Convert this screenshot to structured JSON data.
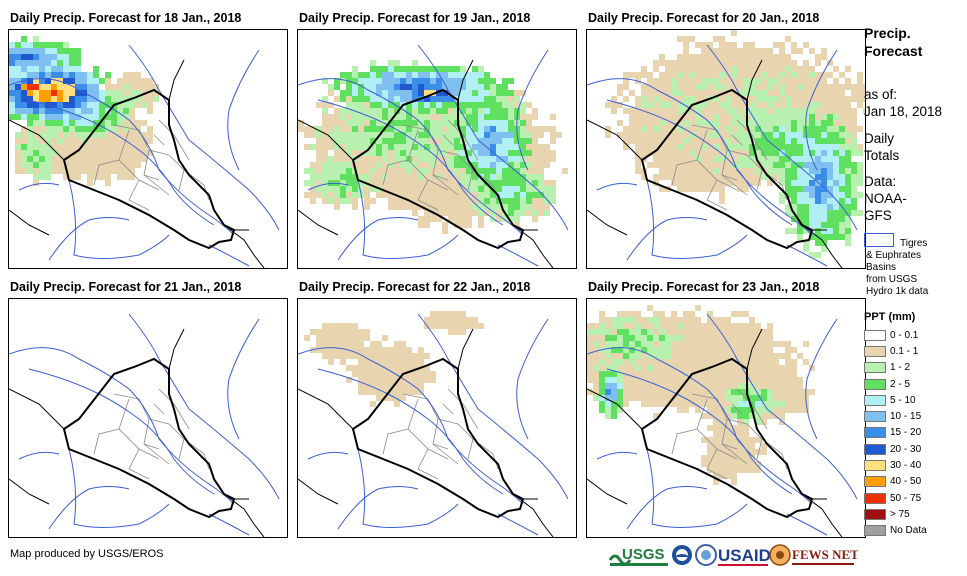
{
  "panels": [
    {
      "title": "Daily Precip. Forecast for 18 Jan., 2018",
      "day": 18
    },
    {
      "title": "Daily Precip. Forecast for 19 Jan., 2018",
      "day": 19
    },
    {
      "title": "Daily Precip. Forecast for 20 Jan., 2018",
      "day": 20
    },
    {
      "title": "Daily Precip. Forecast for 21 Jan., 2018",
      "day": 21
    },
    {
      "title": "Daily Precip. Forecast for 22 Jan., 2018",
      "day": 22
    },
    {
      "title": "Daily Precip. Forecast for 23 Jan., 2018",
      "day": 23
    }
  ],
  "side": {
    "title_line1": "Precip.",
    "title_line2": "Forecast",
    "asof_line1": "as of:",
    "asof_line2": "Jan 18, 2018",
    "daily_line1": "Daily",
    "daily_line2": "Totals",
    "data_line1": "Data:",
    "data_line2": "NOAA-",
    "data_line3": "GFS"
  },
  "basin_legend": {
    "line1": "Tigres",
    "line2": "& Euphrates",
    "line3": "Basins",
    "line4": "from USGS",
    "line5": "Hydro 1k data",
    "color": "#3b5fd6"
  },
  "legend": {
    "header": "PPT (mm)",
    "items": [
      {
        "label": "0 - 0.1",
        "color": "#ffffff"
      },
      {
        "label": "0.1 - 1",
        "color": "#e8d5b0"
      },
      {
        "label": "1 - 2",
        "color": "#b8f0b0"
      },
      {
        "label": "2 - 5",
        "color": "#5fe060"
      },
      {
        "label": "5 - 10",
        "color": "#b0f0f4"
      },
      {
        "label": "10 - 15",
        "color": "#80c0f0"
      },
      {
        "label": "15 - 20",
        "color": "#3a8ee8"
      },
      {
        "label": "20 - 30",
        "color": "#2058d0"
      },
      {
        "label": "30 - 40",
        "color": "#ffe080"
      },
      {
        "label": "40 - 50",
        "color": "#ffa000"
      },
      {
        "label": "50 - 75",
        "color": "#f03000"
      },
      {
        "label": "> 75",
        "color": "#a01010"
      },
      {
        "label": "No Data",
        "color": "#a0a0a0"
      }
    ]
  },
  "footer": "Map produced by USGS/EROS",
  "logos": {
    "usgs": "USGS",
    "usaid": "USAID",
    "fewsnet": "FEWS NET"
  }
}
